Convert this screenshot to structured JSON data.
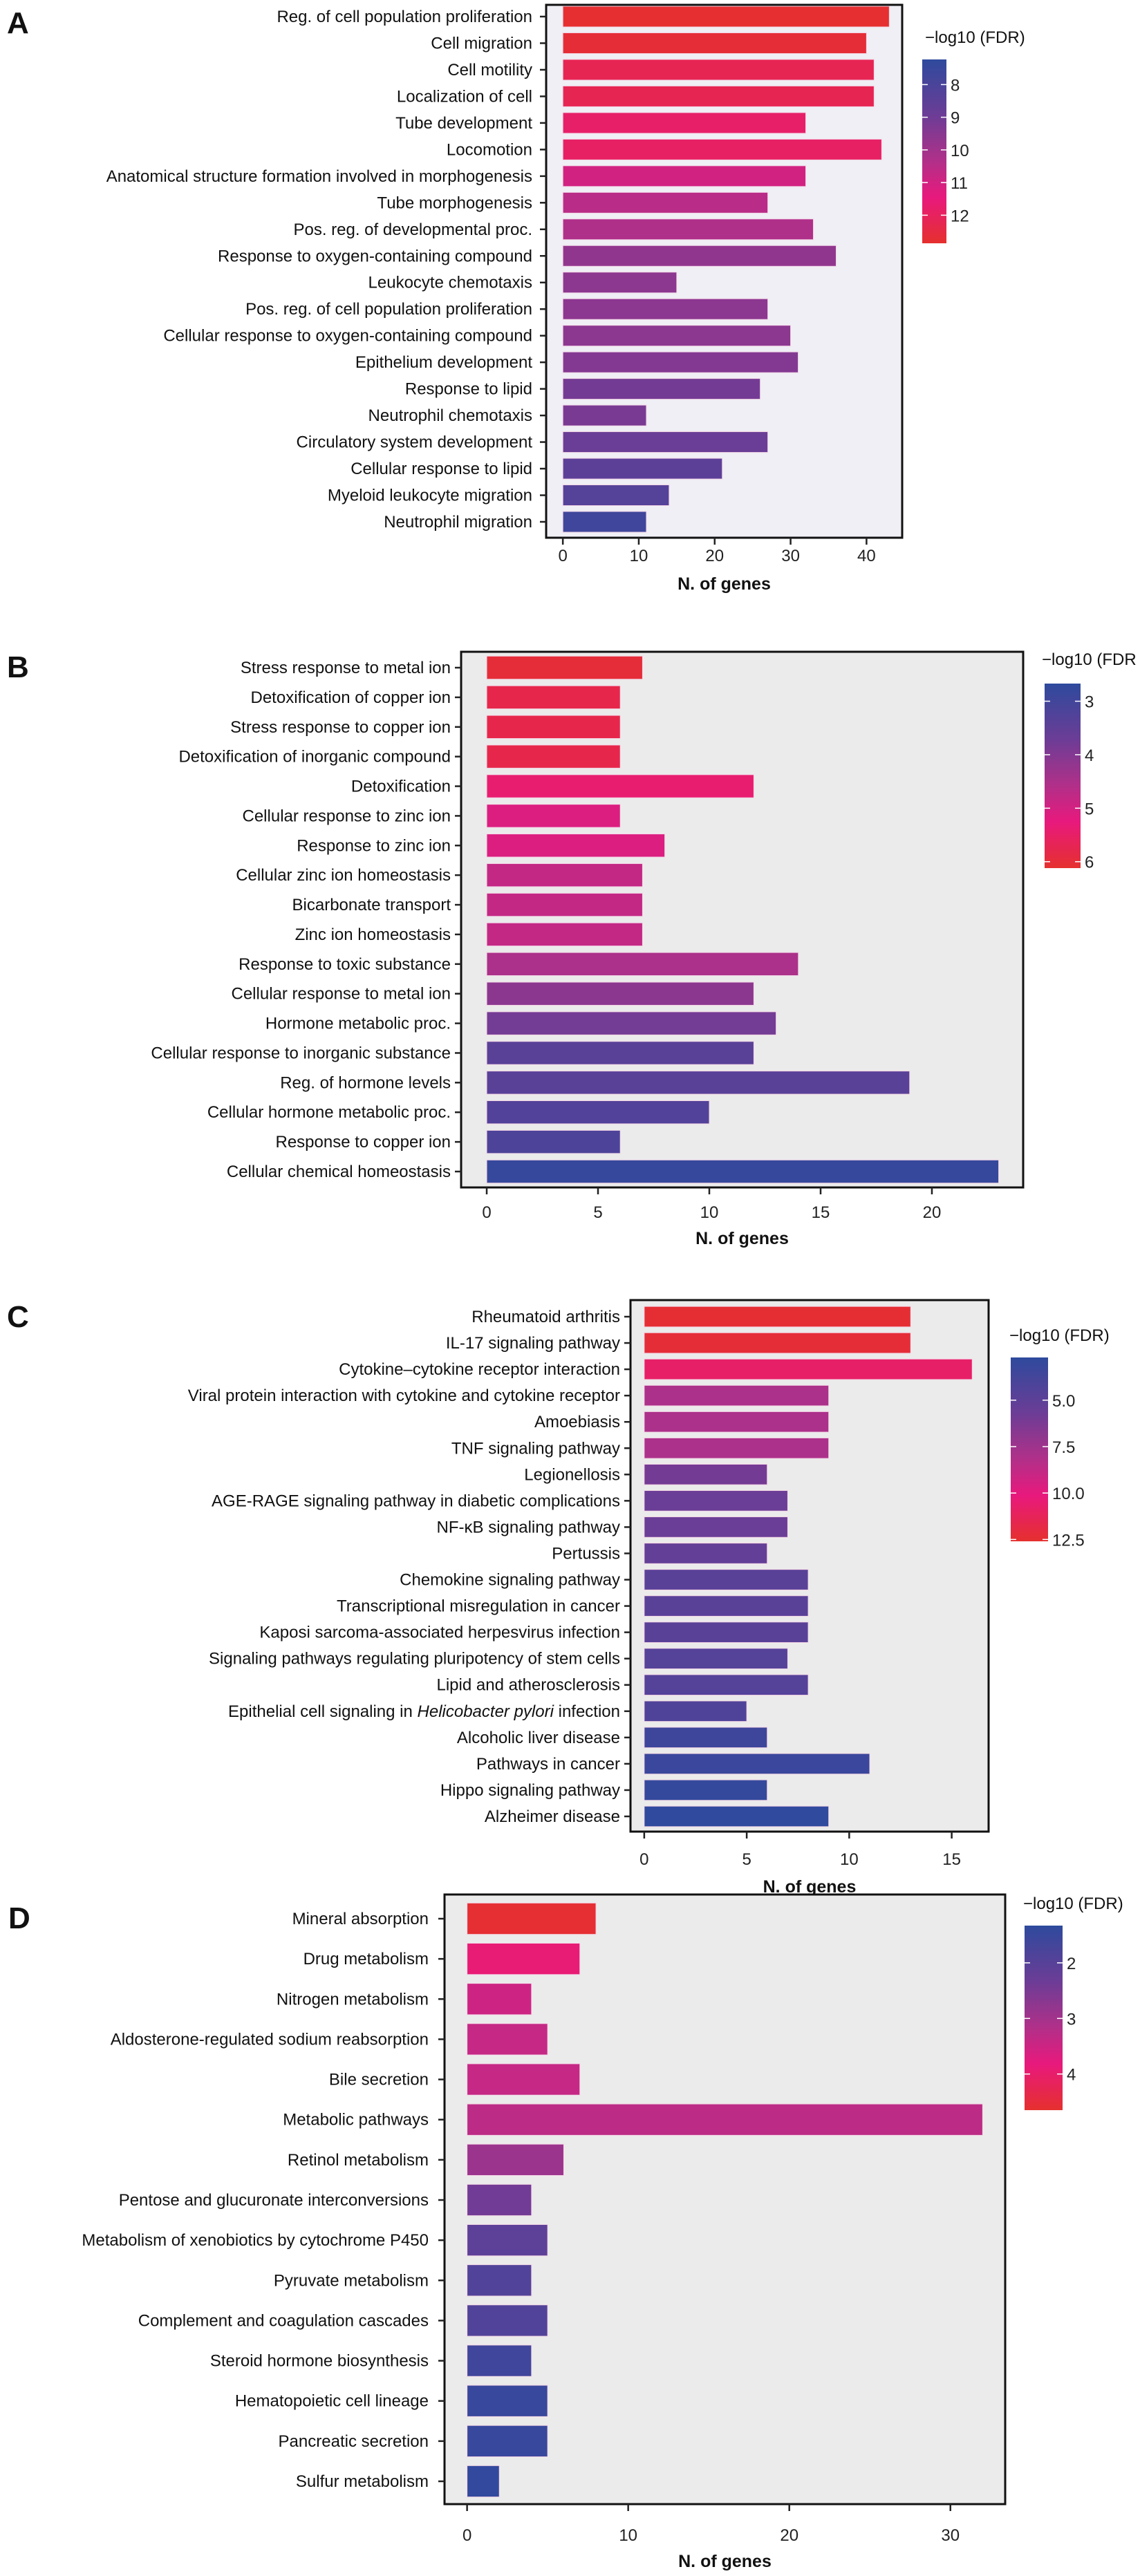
{
  "chart_data": [
    {
      "panel_label": "A",
      "type": "bar",
      "orientation": "horizontal",
      "categories": [
        "Reg. of cell population proliferation",
        "Cell migration",
        "Cell motility",
        "Localization of cell",
        "Tube development",
        "Locomotion",
        "Anatomical structure formation involved in morphogenesis",
        "Tube morphogenesis",
        "Pos. reg. of developmental proc.",
        "Response to oxygen-containing compound",
        "Leukocyte chemotaxis",
        "Pos. reg. of cell population proliferation",
        "Cellular response to oxygen-containing compound",
        "Epithelium development",
        "Response to lipid",
        "Neutrophil chemotaxis",
        "Circulatory system development",
        "Cellular response to lipid",
        "Myeloid leukocyte migration",
        "Neutrophil migration"
      ],
      "values": [
        43,
        40,
        41,
        41,
        32,
        42,
        32,
        27,
        33,
        36,
        15,
        27,
        30,
        31,
        26,
        11,
        27,
        21,
        14,
        11
      ],
      "color_values": [
        12.8,
        12.7,
        12.2,
        12.2,
        11.8,
        11.9,
        11.0,
        10.5,
        10.3,
        9.7,
        9.6,
        9.6,
        9.6,
        9.4,
        9.1,
        9.2,
        8.9,
        8.5,
        8.3,
        7.7
      ],
      "xlabel": "N. of genes",
      "xticks": [
        "0",
        "10",
        "20",
        "30",
        "40"
      ],
      "xlim": [
        -2.2,
        44.7
      ],
      "background": "#efeff5",
      "colorbar": {
        "title": "−log10 (FDR)",
        "range": [
          7.23,
          12.86
        ],
        "ticks": [
          "8",
          "9",
          "10",
          "11",
          "12"
        ]
      }
    },
    {
      "panel_label": "B",
      "type": "bar",
      "orientation": "horizontal",
      "categories": [
        "Stress response to metal ion",
        "Detoxification of copper ion",
        "Stress response to copper ion",
        "Detoxification of inorganic compound",
        "Detoxification",
        "Cellular response to zinc ion",
        "Response to zinc ion",
        "Cellular zinc ion homeostasis",
        "Bicarbonate transport",
        "Zinc ion homeostasis",
        "Response to toxic substance",
        "Cellular response to metal ion",
        "Hormone metabolic proc.",
        "Cellular response to inorganic substance",
        "Reg. of hormone levels",
        "Cellular hormone metabolic proc.",
        "Response to copper ion",
        "Cellular chemical homeostasis"
      ],
      "values": [
        7,
        6,
        6,
        6,
        12,
        6,
        8,
        7,
        7,
        7,
        14,
        12,
        13,
        12,
        19,
        10,
        6,
        23
      ],
      "color_values": [
        6.0,
        5.8,
        5.8,
        5.8,
        5.4,
        5.1,
        5.1,
        4.8,
        4.8,
        4.8,
        4.5,
        4.1,
        3.8,
        3.4,
        3.4,
        3.3,
        3.2,
        2.8
      ],
      "xlabel": "N. of genes",
      "xticks": [
        "0",
        "5",
        "10",
        "15",
        "20"
      ],
      "xlim": [
        -1.15,
        24.1
      ],
      "background": "#ebebeb",
      "colorbar": {
        "title": "−log10 (FDR",
        "range": [
          2.67,
          6.12
        ],
        "ticks": [
          "3",
          "4",
          "5",
          "6"
        ]
      }
    },
    {
      "panel_label": "C",
      "type": "bar",
      "orientation": "horizontal",
      "categories": [
        "Rheumatoid arthritis",
        "IL-17 signaling pathway",
        "Cytokine–cytokine receptor interaction",
        "Viral protein interaction with cytokine and cytokine receptor",
        "Amoebiasis",
        "TNF signaling pathway",
        "Legionellosis",
        "AGE-RAGE signaling pathway in diabetic complications",
        "NF-κB signaling pathway",
        "Pertussis",
        "Chemokine signaling pathway",
        "Transcriptional misregulation in cancer",
        "Kaposi sarcoma-associated herpesvirus infection",
        "Signaling pathways regulating pluripotency of stem cells",
        "Lipid and atherosclerosis",
        "Epithelial cell signaling in Helicobacter pylori infection",
        "Alcoholic liver disease",
        "Pathways in cancer",
        "Hippo signaling pathway",
        "Alzheimer disease"
      ],
      "italic_phrase": "Helicobacter pylori",
      "values": [
        13,
        13,
        16,
        9,
        9,
        9,
        6,
        7,
        7,
        6,
        8,
        8,
        8,
        7,
        8,
        5,
        6,
        11,
        6,
        9
      ],
      "color_values": [
        12.4,
        12.3,
        10.8,
        8.0,
        8.0,
        8.0,
        6.0,
        5.6,
        5.6,
        5.3,
        4.8,
        4.8,
        4.8,
        4.6,
        4.6,
        4.3,
        3.5,
        3.3,
        3.0,
        2.8
      ],
      "xlabel": "N. of genes",
      "xticks": [
        "0",
        "5",
        "10",
        "15"
      ],
      "xlim": [
        -0.67,
        16.8
      ],
      "background": "#ebebeb",
      "colorbar": {
        "title": "−log10 (FDR)",
        "range": [
          2.7,
          12.6
        ],
        "ticks": [
          "5.0",
          "7.5",
          "10.0",
          "12.5"
        ]
      }
    },
    {
      "panel_label": "D",
      "type": "bar",
      "orientation": "horizontal",
      "categories": [
        "Mineral absorption",
        "Drug metabolism",
        "Nitrogen metabolism",
        "Aldosterone-regulated sodium reabsorption",
        "Bile secretion",
        "Metabolic pathways",
        "Retinol metabolism",
        "Pentose and glucuronate interconversions",
        "Metabolism of xenobiotics by cytochrome P450",
        "Pyruvate metabolism",
        "Complement and coagulation cascades",
        "Steroid hormone biosynthesis",
        "Hematopoietic cell lineage",
        "Pancreatic secretion",
        "Sulfur metabolism"
      ],
      "values": [
        8,
        7,
        4,
        5,
        7,
        32,
        6,
        4,
        5,
        4,
        5,
        4,
        5,
        5,
        2
      ],
      "color_values": [
        4.6,
        3.9,
        3.5,
        3.4,
        3.4,
        3.3,
        2.9,
        2.4,
        2.1,
        1.9,
        1.9,
        1.6,
        1.5,
        1.5,
        1.4
      ],
      "xlabel": "N. of genes",
      "xticks": [
        "0",
        "10",
        "20",
        "30"
      ],
      "xlim": [
        -1.4,
        33.4
      ],
      "background": "#ebebeb",
      "colorbar": {
        "title": "−log10 (FDR)",
        "range": [
          1.33,
          4.65
        ],
        "ticks": [
          "2",
          "3",
          "4"
        ]
      }
    }
  ],
  "colors": {
    "low": "#2e4a9d",
    "mid_purple": "#6b3d96",
    "mid_magenta": "#e8197d",
    "high": "#e5302e"
  }
}
